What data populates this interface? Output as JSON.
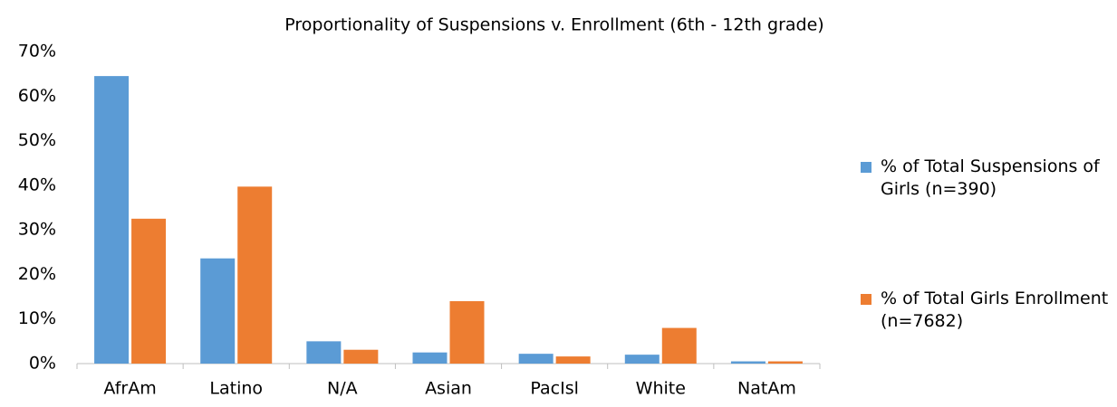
{
  "chart_data": {
    "type": "bar",
    "title": "Proportionality of Suspensions v. Enrollment (6th - 12th grade)",
    "categories": [
      "AfrAm",
      "Latino",
      "N/A",
      "Asian",
      "PacIsl",
      "White",
      "NatAm"
    ],
    "series": [
      {
        "name": "% of Total Suspensions of Girls (n=390)",
        "color": "#5b9bd5",
        "values": [
          64.5,
          23.6,
          5.0,
          2.5,
          2.2,
          2.0,
          0.5
        ]
      },
      {
        "name": "% of Total Girls Enrollment (n=7682)",
        "color": "#ed7d31",
        "values": [
          32.5,
          39.7,
          3.1,
          14.0,
          1.6,
          8.0,
          0.5
        ]
      }
    ],
    "ylim": [
      0,
      70
    ],
    "yticks": [
      {
        "value": 0,
        "label": "0%"
      },
      {
        "value": 10,
        "label": "10%"
      },
      {
        "value": 20,
        "label": "20%"
      },
      {
        "value": 30,
        "label": "30%"
      },
      {
        "value": 40,
        "label": "40%"
      },
      {
        "value": 50,
        "label": "50%"
      },
      {
        "value": 60,
        "label": "60%"
      },
      {
        "value": 70,
        "label": "70%"
      }
    ],
    "legend": "right",
    "grid": false
  }
}
